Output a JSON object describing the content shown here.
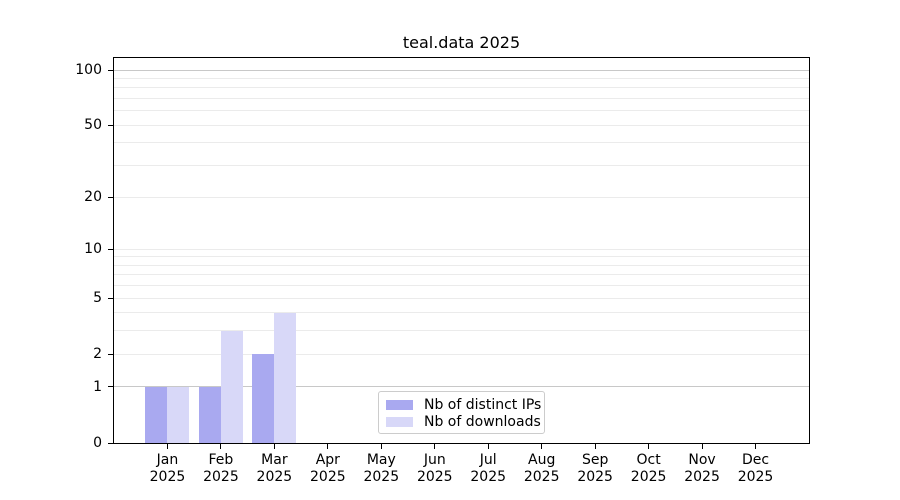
{
  "chart_data": {
    "type": "bar",
    "title": "teal.data 2025",
    "categories": [
      "Jan 2025",
      "Feb 2025",
      "Mar 2025",
      "Apr 2025",
      "May 2025",
      "Jun 2025",
      "Jul 2025",
      "Aug 2025",
      "Sep 2025",
      "Oct 2025",
      "Nov 2025",
      "Dec 2025"
    ],
    "months": [
      {
        "month": "Jan",
        "year": "2025"
      },
      {
        "month": "Feb",
        "year": "2025"
      },
      {
        "month": "Mar",
        "year": "2025"
      },
      {
        "month": "Apr",
        "year": "2025"
      },
      {
        "month": "May",
        "year": "2025"
      },
      {
        "month": "Jun",
        "year": "2025"
      },
      {
        "month": "Jul",
        "year": "2025"
      },
      {
        "month": "Aug",
        "year": "2025"
      },
      {
        "month": "Sep",
        "year": "2025"
      },
      {
        "month": "Oct",
        "year": "2025"
      },
      {
        "month": "Nov",
        "year": "2025"
      },
      {
        "month": "Dec",
        "year": "2025"
      }
    ],
    "series": [
      {
        "name": "Nb of distinct IPs",
        "color": "#a9a9f0",
        "values": [
          1,
          1,
          2,
          0,
          0,
          0,
          0,
          0,
          0,
          0,
          0,
          0
        ]
      },
      {
        "name": "Nb of downloads",
        "color": "#d8d8f8",
        "values": [
          1,
          3,
          4,
          0,
          0,
          0,
          0,
          0,
          0,
          0,
          0,
          0
        ]
      }
    ],
    "xlabel": "",
    "ylabel": "",
    "yscale": "log1p",
    "ylim": [
      0,
      113
    ],
    "yticks": [
      0,
      1,
      2,
      5,
      10,
      20,
      50,
      100
    ],
    "gridline_values": [
      1,
      2,
      3,
      4,
      5,
      6,
      7,
      8,
      9,
      10,
      20,
      30,
      40,
      50,
      60,
      70,
      80,
      90,
      100
    ],
    "major_gridline_values": [
      1,
      100
    ],
    "grid": "on",
    "legend_position": "lower center",
    "colors": {
      "gridline_minor": "#ebebeb",
      "gridline_major": "#c8c8c8",
      "axis": "#000000",
      "legend_border": "#cccccc"
    }
  }
}
